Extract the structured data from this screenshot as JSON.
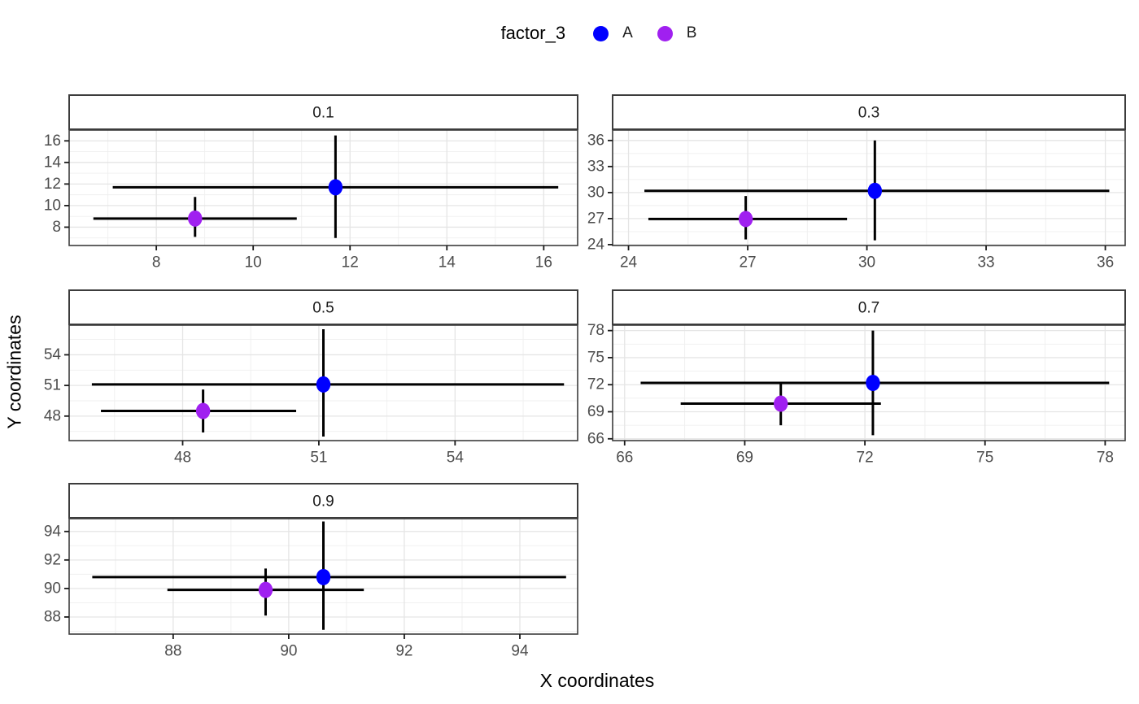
{
  "chart_data": {
    "type": "scatter",
    "description": "Faceted scatter plot with crossed x/y error bars, 5 facets by quantile, colored by factor_3",
    "xlabel": "X coordinates",
    "ylabel": "Y coordinates",
    "grid": true,
    "legend_position": "top",
    "legend": {
      "title": "factor_3",
      "entries": [
        {
          "label": "A",
          "color": "#0000FF"
        },
        {
          "label": "B",
          "color": "#A020F0"
        }
      ]
    },
    "series_colors": {
      "A": "#0000FF",
      "B": "#A020F0"
    },
    "style": {
      "point_color_A": "#0000FF",
      "point_color_B": "#A020F0",
      "errorbar_color": "#000000",
      "panel_bg": "#FFFFFF",
      "strip_bg": "#FFFFFF",
      "border_color": "#3C3C3C",
      "grid_major_color": "#E5E5E5",
      "grid_minor_color": "#EFEFEF",
      "tick_label_color": "#4D4D4D",
      "strip_label_color": "#1A1A1A"
    },
    "facets": [
      {
        "label": "0.1",
        "row": 0,
        "col": 0,
        "xlim": [
          6.2,
          16.7
        ],
        "ylim": [
          6.3,
          17.0
        ],
        "xticks": [
          8,
          10,
          12,
          14,
          16
        ],
        "yticks": [
          8,
          10,
          12,
          14,
          16
        ],
        "points": [
          {
            "series": "A",
            "x": 11.7,
            "y": 11.7,
            "xmin": 7.1,
            "xmax": 16.3,
            "ymin": 7.0,
            "ymax": 16.5
          },
          {
            "series": "B",
            "x": 8.8,
            "y": 8.8,
            "xmin": 6.7,
            "xmax": 10.9,
            "ymin": 7.1,
            "ymax": 10.8
          }
        ]
      },
      {
        "label": "0.3",
        "row": 0,
        "col": 1,
        "xlim": [
          23.6,
          36.5
        ],
        "ylim": [
          23.9,
          37.2
        ],
        "xticks": [
          24,
          27,
          30,
          33,
          36
        ],
        "yticks": [
          24,
          27,
          30,
          33,
          36
        ],
        "points": [
          {
            "series": "A",
            "x": 30.2,
            "y": 30.2,
            "xmin": 24.4,
            "xmax": 36.1,
            "ymin": 24.5,
            "ymax": 36.0
          },
          {
            "series": "B",
            "x": 26.95,
            "y": 26.95,
            "xmin": 24.5,
            "xmax": 29.5,
            "ymin": 24.6,
            "ymax": 29.6
          }
        ]
      },
      {
        "label": "0.5",
        "row": 1,
        "col": 0,
        "xlim": [
          45.5,
          56.7
        ],
        "ylim": [
          45.6,
          56.9
        ],
        "xticks": [
          48,
          51,
          54
        ],
        "yticks": [
          48,
          51,
          54
        ],
        "points": [
          {
            "series": "A",
            "x": 51.1,
            "y": 51.1,
            "xmin": 46.0,
            "xmax": 56.4,
            "ymin": 46.0,
            "ymax": 56.5
          },
          {
            "series": "B",
            "x": 48.45,
            "y": 48.5,
            "xmin": 46.2,
            "xmax": 50.5,
            "ymin": 46.4,
            "ymax": 50.6
          }
        ]
      },
      {
        "label": "0.7",
        "row": 1,
        "col": 1,
        "xlim": [
          65.7,
          78.5
        ],
        "ylim": [
          65.8,
          78.6
        ],
        "xticks": [
          66,
          69,
          72,
          75,
          78
        ],
        "yticks": [
          66,
          69,
          72,
          75,
          78
        ],
        "points": [
          {
            "series": "A",
            "x": 72.2,
            "y": 72.2,
            "xmin": 66.4,
            "xmax": 78.1,
            "ymin": 66.4,
            "ymax": 78.0
          },
          {
            "series": "B",
            "x": 69.9,
            "y": 69.9,
            "xmin": 67.4,
            "xmax": 72.4,
            "ymin": 67.5,
            "ymax": 72.3
          }
        ]
      },
      {
        "label": "0.9",
        "row": 2,
        "col": 0,
        "xlim": [
          86.2,
          95.0
        ],
        "ylim": [
          86.8,
          94.9
        ],
        "xticks": [
          88,
          90,
          92,
          94
        ],
        "yticks": [
          88,
          90,
          92,
          94
        ],
        "points": [
          {
            "series": "A",
            "x": 90.6,
            "y": 90.8,
            "xmin": 86.6,
            "xmax": 94.8,
            "ymin": 87.1,
            "ymax": 94.7
          },
          {
            "series": "B",
            "x": 89.6,
            "y": 89.9,
            "xmin": 87.9,
            "xmax": 91.3,
            "ymin": 88.1,
            "ymax": 91.4
          }
        ]
      }
    ]
  }
}
